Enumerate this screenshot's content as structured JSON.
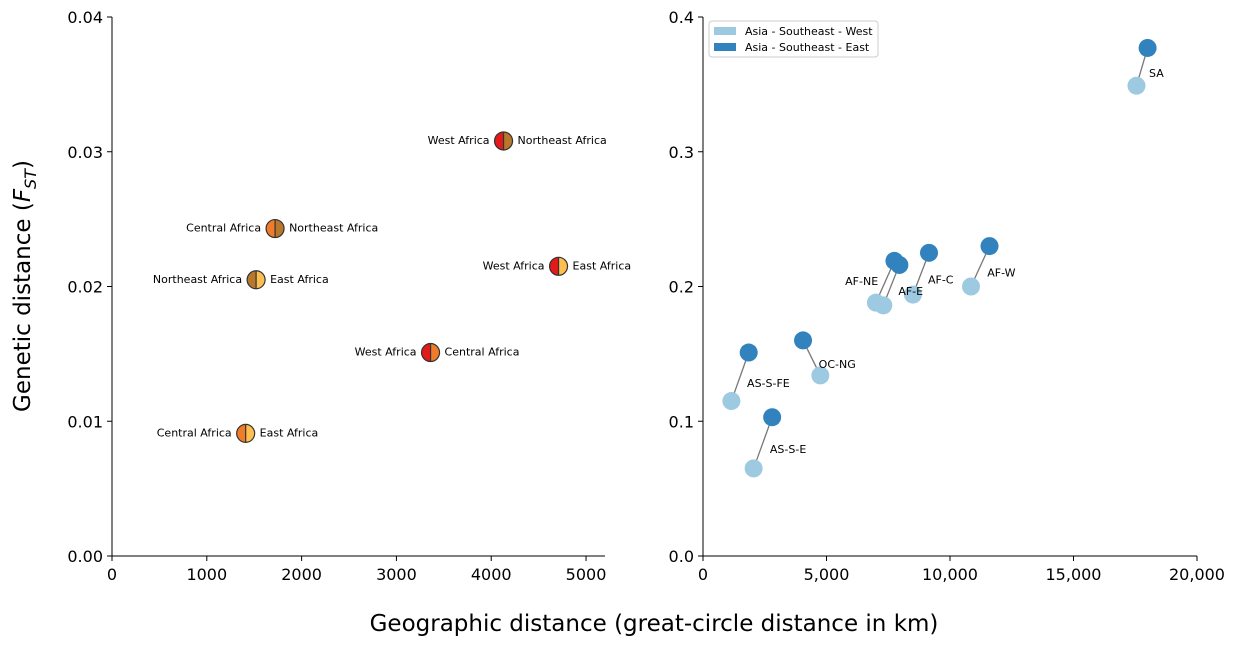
{
  "figure": {
    "xlabel": "Geographic distance (great-circle distance in km)",
    "ylabel_main": "Genetic distance (",
    "ylabel_sym": "F",
    "ylabel_sub": "ST",
    "ylabel_end": ")"
  },
  "chart_data": [
    {
      "type": "scatter",
      "panel": "left",
      "xlim": [
        0,
        5200
      ],
      "ylim": [
        0,
        0.04
      ],
      "xticks": [
        0,
        1000,
        2000,
        3000,
        4000,
        5000
      ],
      "xtick_labels": [
        "0",
        "1000",
        "2000",
        "3000",
        "4000",
        "5000"
      ],
      "yticks": [
        0,
        0.01,
        0.02,
        0.03,
        0.04
      ],
      "ytick_labels": [
        "0.00",
        "0.01",
        "0.02",
        "0.03",
        "0.04"
      ],
      "grid": false,
      "points": [
        {
          "x": 4130,
          "y": 0.0308,
          "left_label": "West Africa",
          "right_label": "Northeast Africa",
          "left_color": "#e31a1c",
          "right_color": "#b8772a"
        },
        {
          "x": 1720,
          "y": 0.0243,
          "left_label": "Central Africa",
          "right_label": "Northeast Africa",
          "left_color": "#f07c2a",
          "right_color": "#b8772a"
        },
        {
          "x": 1520,
          "y": 0.0205,
          "left_label": "Northeast Africa",
          "right_label": "East Africa",
          "left_color": "#b8772a",
          "right_color": "#fdbf4f"
        },
        {
          "x": 4710,
          "y": 0.0215,
          "left_label": "West Africa",
          "right_label": "East Africa",
          "left_color": "#e31a1c",
          "right_color": "#fdbf4f"
        },
        {
          "x": 3360,
          "y": 0.0151,
          "left_label": "West Africa",
          "right_label": "Central Africa",
          "left_color": "#e31a1c",
          "right_color": "#f07c2a"
        },
        {
          "x": 1410,
          "y": 0.0091,
          "left_label": "Central Africa",
          "right_label": "East Africa",
          "left_color": "#f07c2a",
          "right_color": "#fdbf4f"
        }
      ]
    },
    {
      "type": "scatter",
      "panel": "right",
      "xlim": [
        0,
        20000
      ],
      "ylim": [
        0,
        0.4
      ],
      "xticks": [
        0,
        5000,
        10000,
        15000,
        20000
      ],
      "xtick_labels": [
        "0",
        "5,000",
        "10,000",
        "15,000",
        "20,000"
      ],
      "yticks": [
        0,
        0.1,
        0.2,
        0.3,
        0.4
      ],
      "ytick_labels": [
        "0.0",
        "0.1",
        "0.2",
        "0.3",
        "0.4"
      ],
      "grid": false,
      "legend_placement": "top-left",
      "series": [
        {
          "name": "Asia - Southeast - West",
          "color": "#9ecae1"
        },
        {
          "name": "Asia - Southeast - East",
          "color": "#3182bd"
        }
      ],
      "pairs": [
        {
          "label": "SA",
          "label_anchor": "east",
          "west": {
            "x": 17550,
            "y": 0.349
          },
          "east": {
            "x": 18000,
            "y": 0.377
          }
        },
        {
          "label": "AF-W",
          "label_anchor": "east",
          "west": {
            "x": 10850,
            "y": 0.2
          },
          "east": {
            "x": 11600,
            "y": 0.23
          }
        },
        {
          "label": "AF-C",
          "label_anchor": "east",
          "west": {
            "x": 8500,
            "y": 0.194
          },
          "east": {
            "x": 9150,
            "y": 0.225
          }
        },
        {
          "label": "AF-E",
          "label_anchor": "east",
          "west": {
            "x": 7300,
            "y": 0.186
          },
          "east": {
            "x": 7950,
            "y": 0.216
          }
        },
        {
          "label": "AF-NE",
          "label_anchor": "west",
          "west": {
            "x": 7000,
            "y": 0.188
          },
          "east": {
            "x": 7750,
            "y": 0.219
          }
        },
        {
          "label": "OC-NG",
          "label_anchor": "east",
          "west": {
            "x": 4750,
            "y": 0.134
          },
          "east": {
            "x": 4050,
            "y": 0.16
          }
        },
        {
          "label": "AS-S-FE",
          "label_anchor": "east",
          "west": {
            "x": 1150,
            "y": 0.115
          },
          "east": {
            "x": 1850,
            "y": 0.151
          }
        },
        {
          "label": "AS-S-E",
          "label_anchor": "east",
          "west": {
            "x": 2050,
            "y": 0.065
          },
          "east": {
            "x": 2800,
            "y": 0.103
          }
        }
      ]
    }
  ]
}
